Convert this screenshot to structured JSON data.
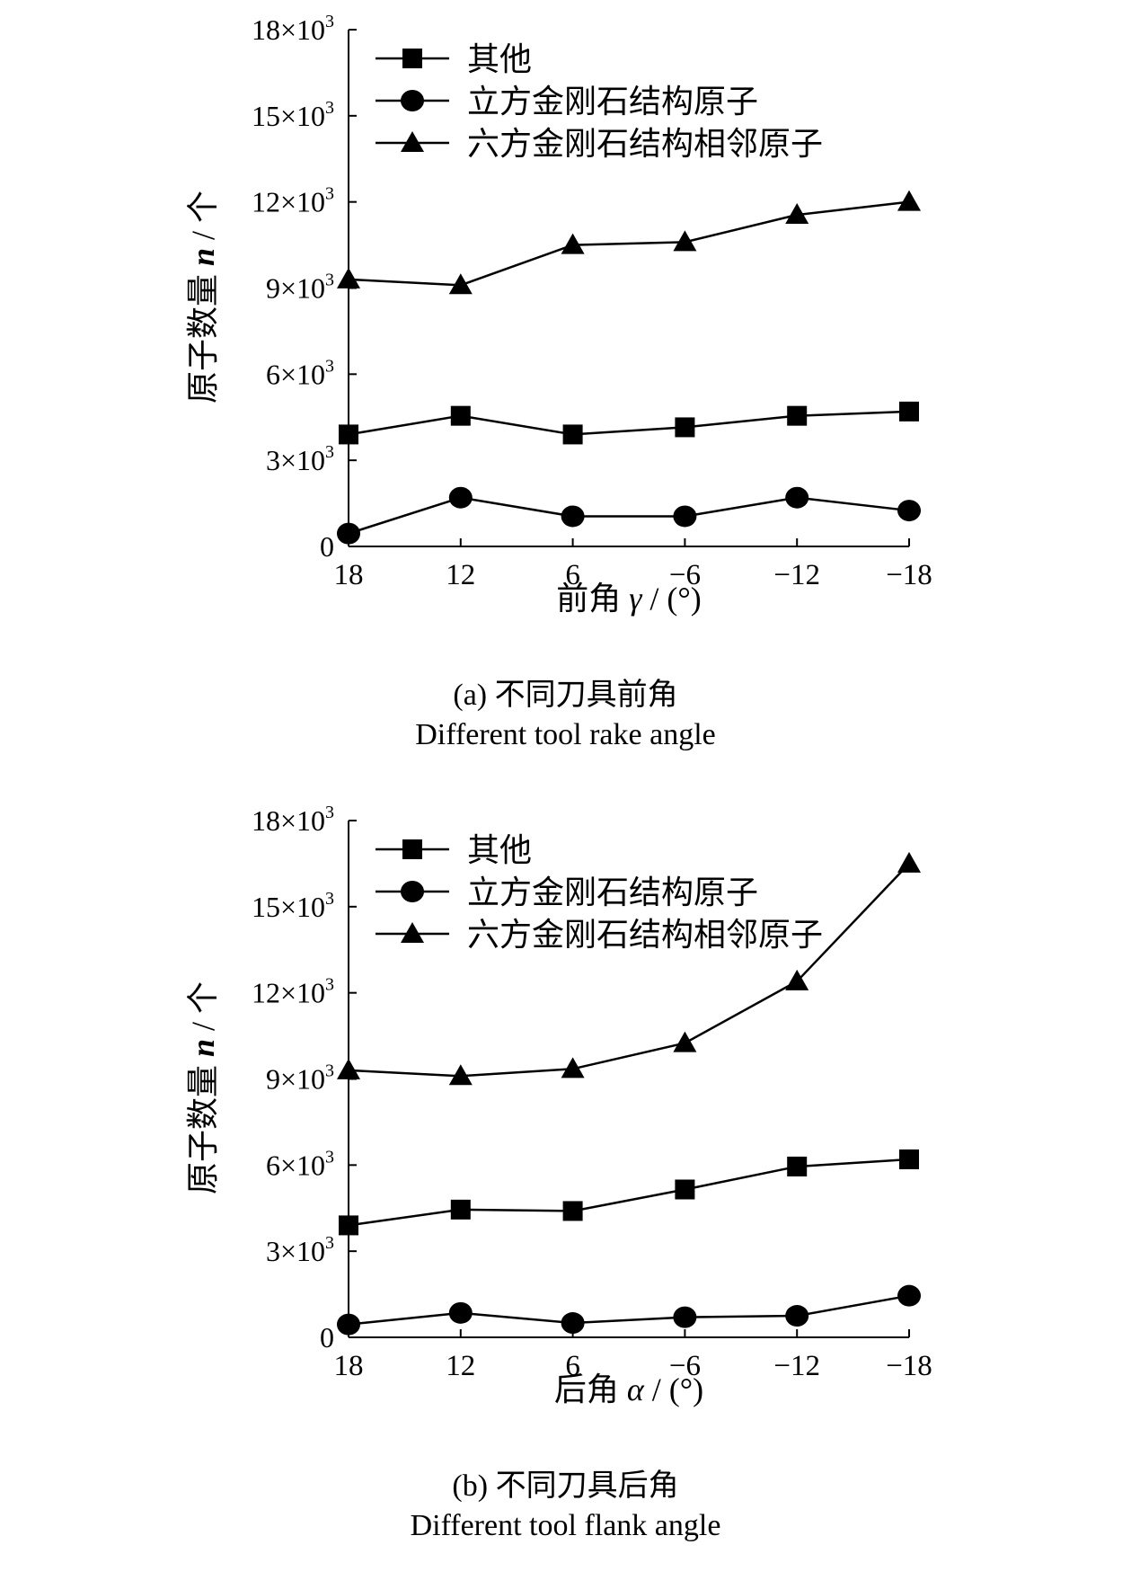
{
  "chart_data": [
    {
      "type": "line",
      "id": "a",
      "categories": [
        "18",
        "12",
        "6",
        "−6",
        "−12",
        "−18"
      ],
      "series": [
        {
          "name": "其他",
          "marker": "square",
          "values": [
            3900,
            4550,
            3900,
            4150,
            4550,
            4700
          ]
        },
        {
          "name": "立方金刚石结构原子",
          "marker": "circle",
          "values": [
            450,
            1700,
            1050,
            1050,
            1700,
            1250
          ]
        },
        {
          "name": "六方金刚石结构相邻原子",
          "marker": "triangle",
          "values": [
            9300,
            9100,
            10500,
            10600,
            11550,
            12000
          ]
        }
      ],
      "ylim": [
        0,
        18000
      ],
      "yticks": [
        {
          "value": 0,
          "mantissa": "0",
          "exp": ""
        },
        {
          "value": 3000,
          "mantissa": "3×10",
          "exp": "3"
        },
        {
          "value": 6000,
          "mantissa": "6×10",
          "exp": "3"
        },
        {
          "value": 9000,
          "mantissa": "9×10",
          "exp": "3"
        },
        {
          "value": 12000,
          "mantissa": "12×10",
          "exp": "3"
        },
        {
          "value": 15000,
          "mantissa": "15×10",
          "exp": "3"
        },
        {
          "value": 18000,
          "mantissa": "18×10",
          "exp": "3"
        }
      ],
      "ylabel_cn": "原子数量",
      "ylabel_var": "n",
      "ylabel_unit": "/ 个",
      "xlabel_cn": "前角",
      "xlabel_var": "γ",
      "xlabel_unit": "/ (°)",
      "caption_cn": "(a) 不同刀具前角",
      "caption_en": "Different tool rake angle",
      "legend_position": "top-left",
      "grid": false
    },
    {
      "type": "line",
      "id": "b",
      "categories": [
        "18",
        "12",
        "6",
        "−6",
        "−12",
        "−18"
      ],
      "series": [
        {
          "name": "其他",
          "marker": "square",
          "values": [
            3900,
            4450,
            4400,
            5150,
            5950,
            6200
          ]
        },
        {
          "name": "立方金刚石结构原子",
          "marker": "circle",
          "values": [
            450,
            850,
            500,
            700,
            750,
            1450
          ]
        },
        {
          "name": "六方金刚石结构相邻原子",
          "marker": "triangle",
          "values": [
            9300,
            9100,
            9350,
            10250,
            12400,
            16500
          ]
        }
      ],
      "ylim": [
        0,
        18000
      ],
      "yticks": [
        {
          "value": 0,
          "mantissa": "0",
          "exp": ""
        },
        {
          "value": 3000,
          "mantissa": "3×10",
          "exp": "3"
        },
        {
          "value": 6000,
          "mantissa": "6×10",
          "exp": "3"
        },
        {
          "value": 9000,
          "mantissa": "9×10",
          "exp": "3"
        },
        {
          "value": 12000,
          "mantissa": "12×10",
          "exp": "3"
        },
        {
          "value": 15000,
          "mantissa": "15×10",
          "exp": "3"
        },
        {
          "value": 18000,
          "mantissa": "18×10",
          "exp": "3"
        }
      ],
      "ylabel_cn": "原子数量",
      "ylabel_var": "n",
      "ylabel_unit": "/ 个",
      "xlabel_cn": "后角",
      "xlabel_var": "α",
      "xlabel_unit": "/ (°)",
      "caption_cn": "(b) 不同刀具后角",
      "caption_en": "Different tool flank angle",
      "legend_position": "top-left",
      "grid": false
    }
  ]
}
